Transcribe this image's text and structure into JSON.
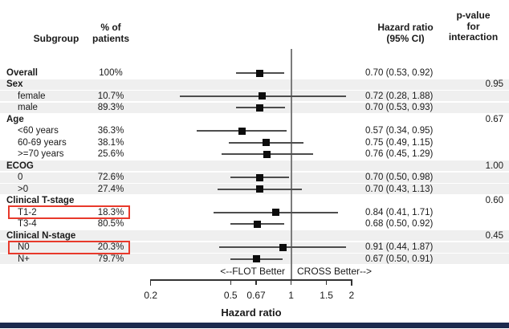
{
  "header": {
    "subgroup": "Subgroup",
    "pct": "% of\npatients",
    "hazard_ratio": "Hazard ratio\n(95% CI)",
    "p_interaction": "p-value\nfor\ninteraction"
  },
  "chart_data": {
    "type": "forest",
    "scale": "log",
    "xlim": [
      0.2,
      2
    ],
    "ref_line": 1,
    "xlabel": "Hazard ratio",
    "ticks": [
      "0.2",
      "0.5",
      "0.67",
      "1",
      "1.5",
      "2"
    ],
    "tick_values": [
      0.2,
      0.5,
      0.67,
      1,
      1.5,
      2
    ],
    "direction_left_label": "<--FLOT Better",
    "direction_right_label": "CROSS Better-->",
    "rows": [
      {
        "label": "Overall",
        "bold": true,
        "indent": false,
        "pct": "100%",
        "est": 0.7,
        "lo": 0.53,
        "hi": 0.92,
        "ci": "0.70 (0.53, 0.92)",
        "p": "",
        "shade": false,
        "red_box": false
      },
      {
        "label": "Sex",
        "bold": true,
        "indent": false,
        "pct": "",
        "ci": "",
        "p": "0.95",
        "shade": true,
        "red_box": false
      },
      {
        "label": "female",
        "bold": false,
        "indent": true,
        "pct": "10.7%",
        "est": 0.72,
        "lo": 0.28,
        "hi": 1.88,
        "ci": "0.72 (0.28, 1.88)",
        "p": "",
        "shade": true,
        "red_box": false
      },
      {
        "label": "male",
        "bold": false,
        "indent": true,
        "pct": "89.3%",
        "est": 0.7,
        "lo": 0.53,
        "hi": 0.93,
        "ci": "0.70 (0.53, 0.93)",
        "p": "",
        "shade": true,
        "red_box": false
      },
      {
        "label": "Age",
        "bold": true,
        "indent": false,
        "pct": "",
        "ci": "",
        "p": "0.67",
        "shade": false,
        "red_box": false
      },
      {
        "label": "<60 years",
        "bold": false,
        "indent": true,
        "pct": "36.3%",
        "est": 0.57,
        "lo": 0.34,
        "hi": 0.95,
        "ci": "0.57 (0.34, 0.95)",
        "p": "",
        "shade": false,
        "red_box": false
      },
      {
        "label": "60-69 years",
        "bold": false,
        "indent": true,
        "pct": "38.1%",
        "est": 0.75,
        "lo": 0.49,
        "hi": 1.15,
        "ci": "0.75 (0.49, 1.15)",
        "p": "",
        "shade": false,
        "red_box": false
      },
      {
        "label": ">=70 years",
        "bold": false,
        "indent": true,
        "pct": "25.6%",
        "est": 0.76,
        "lo": 0.45,
        "hi": 1.29,
        "ci": "0.76 (0.45, 1.29)",
        "p": "",
        "shade": false,
        "red_box": false
      },
      {
        "label": "ECOG",
        "bold": true,
        "indent": false,
        "pct": "",
        "ci": "",
        "p": "1.00",
        "shade": true,
        "red_box": false
      },
      {
        "label": "0",
        "bold": false,
        "indent": true,
        "pct": "72.6%",
        "est": 0.7,
        "lo": 0.5,
        "hi": 0.98,
        "ci": "0.70 (0.50, 0.98)",
        "p": "",
        "shade": true,
        "red_box": false
      },
      {
        "label": ">0",
        "bold": false,
        "indent": true,
        "pct": "27.4%",
        "est": 0.7,
        "lo": 0.43,
        "hi": 1.13,
        "ci": "0.70 (0.43, 1.13)",
        "p": "",
        "shade": true,
        "red_box": false
      },
      {
        "label": "Clinical T-stage",
        "bold": true,
        "indent": false,
        "pct": "",
        "ci": "",
        "p": "0.60",
        "shade": false,
        "red_box": false
      },
      {
        "label": "T1-2",
        "bold": false,
        "indent": true,
        "pct": "18.3%",
        "est": 0.84,
        "lo": 0.41,
        "hi": 1.71,
        "ci": "0.84 (0.41, 1.71)",
        "p": "",
        "shade": false,
        "red_box": true
      },
      {
        "label": "T3-4",
        "bold": false,
        "indent": true,
        "pct": "80.5%",
        "est": 0.68,
        "lo": 0.5,
        "hi": 0.92,
        "ci": "0.68 (0.50, 0.92)",
        "p": "",
        "shade": false,
        "red_box": false
      },
      {
        "label": "Clinical N-stage",
        "bold": true,
        "indent": false,
        "pct": "",
        "ci": "",
        "p": "0.45",
        "shade": true,
        "red_box": false
      },
      {
        "label": "N0",
        "bold": false,
        "indent": true,
        "pct": "20.3%",
        "est": 0.91,
        "lo": 0.44,
        "hi": 1.87,
        "ci": "0.91 (0.44, 1.87)",
        "p": "",
        "shade": true,
        "red_box": true
      },
      {
        "label": "N+",
        "bold": false,
        "indent": true,
        "pct": "79.7%",
        "est": 0.67,
        "lo": 0.5,
        "hi": 0.91,
        "ci": "0.67 (0.50, 0.91)",
        "p": "",
        "shade": true,
        "red_box": false
      }
    ]
  },
  "colors": {
    "stripe": "#efefef",
    "ci_line": "#4d4d4d",
    "marker": "#0d0d0d",
    "ref_line": "#7b7b7b",
    "axis": "#333333",
    "highlight": "#e8392b",
    "bottom_bar": "#1b2a4e"
  }
}
